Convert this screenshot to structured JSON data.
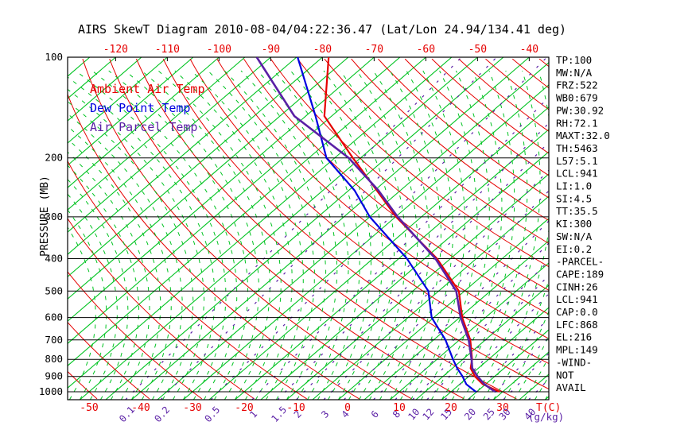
{
  "title": "AIRS SkewT Diagram 2010-08-04/04:22:36.47 (Lat/Lon 24.94/134.41 deg)",
  "colors": {
    "ambient_red": "#e60000",
    "dewpoint_blue": "#0000e0",
    "parcel_purple": "#5a1fa5",
    "isotherm_green": "#00c321",
    "axis_black": "#000000",
    "background": "#ffffff"
  },
  "legend": [
    {
      "label": "Ambient Air Temp",
      "color": "#e60000"
    },
    {
      "label": "Dew Point Temp",
      "color": "#0000e0"
    },
    {
      "label": "Air Parcel Temp",
      "color": "#5a1fa5"
    }
  ],
  "y_axis": {
    "label": "PRESSURE (MB)",
    "ticks": [
      100,
      200,
      300,
      400,
      500,
      600,
      700,
      800,
      900,
      1000
    ]
  },
  "x_axis_top": {
    "ticks": [
      -120,
      -110,
      -100,
      -90,
      -80,
      -70,
      -60,
      -50,
      -40
    ]
  },
  "x_axis_bottom": {
    "label": "T(C)",
    "ticks": [
      -50,
      -40,
      -30,
      -20,
      -10,
      0,
      10,
      20,
      30
    ]
  },
  "mixing_axis": {
    "label": "(g/kg)",
    "ticks": [
      0.1,
      0.2,
      0.5,
      1,
      1.5,
      2,
      3,
      4,
      6,
      8,
      10,
      12,
      15,
      20,
      25,
      30,
      40
    ]
  },
  "stats_panel": [
    "TP:100",
    "MW:N/A",
    "FRZ:522",
    "WB0:679",
    "PW:30.92",
    "RH:72.1",
    "MAXT:32.0",
    "TH:5463",
    "L57:5.1",
    "LCL:941",
    "LI:1.0",
    "SI:4.5",
    "TT:35.5",
    "KI:300",
    "SW:N/A",
    "EI:0.2",
    "-PARCEL-",
    "CAPE:189",
    "CINH:26",
    "LCL:941",
    "CAP:0.0",
    "LFC:868",
    "EL:216",
    "MPL:149",
    "-WIND-",
    "NOT",
    "AVAIL"
  ],
  "chart_data": {
    "type": "line",
    "variant": "skew-t log-p sounding",
    "title": "AIRS SkewT Diagram 2010-08-04/04:22:36.47 (Lat/Lon 24.94/134.41 deg)",
    "xlabel": "T(C)",
    "ylabel": "PRESSURE (MB)",
    "y_scale": "log",
    "ylim": [
      1050,
      100
    ],
    "xlim_bottom_axis": [
      -55,
      38
    ],
    "grid": "skew-t background: green solid isotherms every 5C, red dry adiabats every 10K, green dashed moist adiabats, purple dashed mixing-ratio lines, black horizontal isobars every 100 mb",
    "legend_position": "upper-left inside plot",
    "mixing_ratio_lines_g_per_kg": [
      0.1,
      0.2,
      0.5,
      1,
      1.5,
      2,
      3,
      4,
      6,
      8,
      10,
      12,
      15,
      20,
      25,
      30,
      40
    ],
    "levels_mb": [
      100,
      150,
      200,
      250,
      300,
      400,
      500,
      600,
      700,
      800,
      850,
      900,
      950,
      1000
    ],
    "series": [
      {
        "name": "Ambient Air Temp",
        "color": "#e60000",
        "temps_c": [
          -78.8,
          -66.4,
          -51.5,
          -39.6,
          -29.9,
          -12.6,
          -1.1,
          5.5,
          12.1,
          16.8,
          18.5,
          21.2,
          24.5,
          29.4
        ]
      },
      {
        "name": "Dew Point Temp",
        "color": "#0000e0",
        "temps_c": [
          -84.8,
          -68.1,
          -56.6,
          -43.9,
          -35.0,
          -18.4,
          -7.0,
          -0.4,
          7.3,
          13.1,
          15.9,
          18.8,
          21.3,
          24.8
        ]
      },
      {
        "name": "Air Parcel Temp",
        "color": "#5a1fa5",
        "temps_c": [
          -92.7,
          -72.2,
          -52.3,
          -39.3,
          -29.6,
          -12.9,
          -1.6,
          5.2,
          11.8,
          16.7,
          18.8,
          21.7,
          24.8,
          28.5
        ]
      }
    ]
  }
}
